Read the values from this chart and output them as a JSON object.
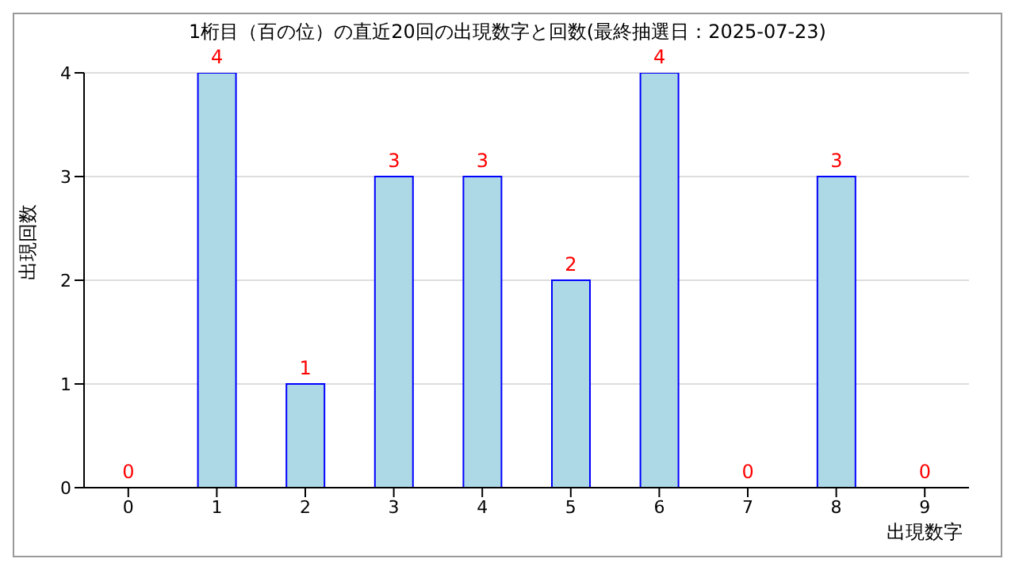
{
  "chart_data": {
    "type": "bar",
    "title": "1桁目（百の位）の直近20回の出現数字と回数(最終抽選日：2025-07-23)",
    "xlabel": "出現数字",
    "ylabel": "出現回数",
    "categories": [
      "0",
      "1",
      "2",
      "3",
      "4",
      "5",
      "6",
      "7",
      "8",
      "9"
    ],
    "values": [
      0,
      4,
      1,
      3,
      3,
      2,
      4,
      0,
      3,
      0
    ],
    "color": "#add8e6",
    "ylim": [
      0,
      4
    ],
    "yticks": [
      0,
      1,
      2,
      3,
      4
    ],
    "grid": "y",
    "data_labels": true
  }
}
